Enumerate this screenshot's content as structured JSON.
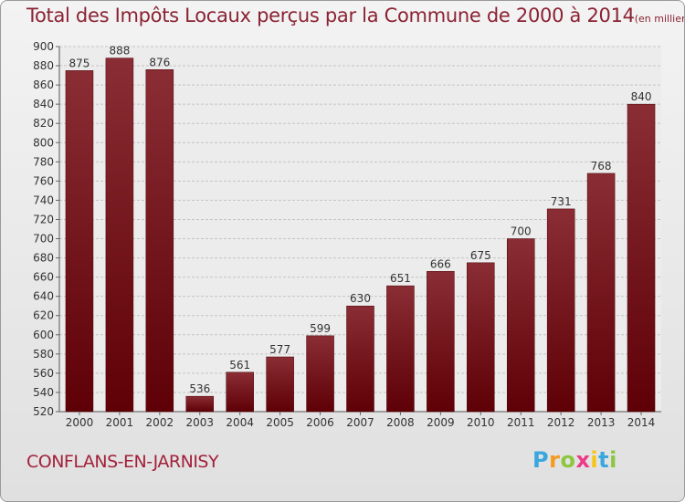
{
  "chart_data": {
    "type": "bar",
    "title": "Total des Impôts Locaux perçus par la Commune de 2000 à 2014",
    "unit_note": "(en milliers d'€)",
    "categories": [
      "2000",
      "2001",
      "2002",
      "2003",
      "2004",
      "2005",
      "2006",
      "2007",
      "2008",
      "2009",
      "2010",
      "2011",
      "2012",
      "2013",
      "2014"
    ],
    "values": [
      875,
      888,
      876,
      536,
      561,
      577,
      599,
      630,
      651,
      666,
      675,
      700,
      731,
      768,
      840
    ],
    "xlabel": "",
    "ylabel": "",
    "ylim": [
      520,
      900
    ],
    "ytick_step": 20,
    "grid": true,
    "bar_color": "#7a1520"
  },
  "footer": {
    "commune": "CONFLANS-EN-JARNISY",
    "logo_letters": [
      "P",
      "r",
      "o",
      "x",
      "i",
      "t",
      "i"
    ],
    "logo_colors": [
      "#3aa7df",
      "#f39a1f",
      "#8dc63f",
      "#ee3a87",
      "#f6c515",
      "#3aa7df",
      "#8dc63f"
    ]
  }
}
